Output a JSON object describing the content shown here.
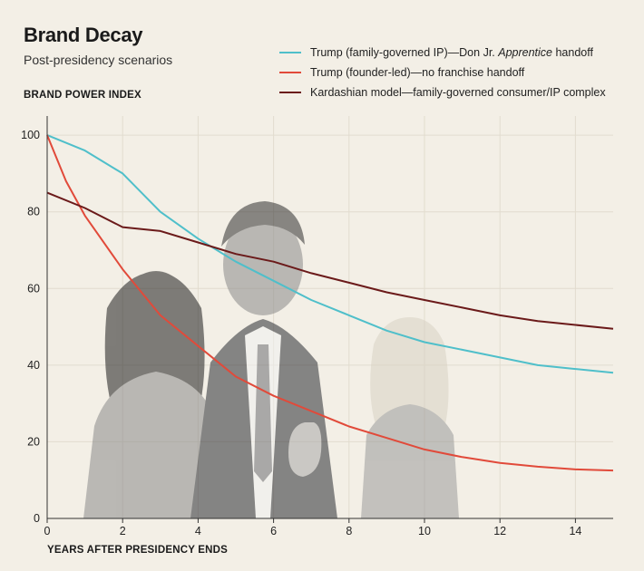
{
  "chart_data": {
    "type": "line",
    "title": "Brand Decay",
    "subtitle": "Post-presidency scenarios",
    "ylabel": "BRAND POWER INDEX",
    "xlabel": "YEARS AFTER PRESIDENCY ENDS",
    "xlim": [
      0,
      15
    ],
    "ylim": [
      0,
      105
    ],
    "x_ticks": [
      0,
      2,
      4,
      6,
      8,
      10,
      12,
      14
    ],
    "y_ticks": [
      0,
      20,
      40,
      60,
      80,
      100
    ],
    "grid": true,
    "legend_position": "top-right",
    "series": [
      {
        "name": "Trump (family-governed IP)—Don Jr. Apprentice handoff",
        "name_prefix": "Trump (family-governed IP)—Don Jr. ",
        "name_italic": "Apprentice",
        "name_suffix": " handoff",
        "color": "#4fbfca",
        "x": [
          0,
          1,
          2,
          3,
          4,
          5,
          6,
          7,
          8,
          9,
          10,
          11,
          12,
          13,
          14,
          15
        ],
        "y": [
          100,
          96,
          90,
          80,
          73,
          67,
          62,
          57,
          53,
          49,
          46,
          44,
          42,
          40,
          39,
          38
        ]
      },
      {
        "name": "Trump (founder-led)—no franchise handoff",
        "color": "#e14a3a",
        "x": [
          0,
          0.5,
          1,
          2,
          3,
          4,
          5,
          6,
          7,
          8,
          9,
          10,
          11,
          12,
          13,
          14,
          15
        ],
        "y": [
          100,
          88,
          79,
          65,
          53,
          45,
          37,
          32,
          28,
          24,
          21,
          18,
          16,
          14.5,
          13.5,
          12.8,
          12.5
        ]
      },
      {
        "name": "Kardashian model—family-governed consumer/IP complex",
        "color": "#6b1a1a",
        "x": [
          0,
          1,
          2,
          3,
          4,
          5,
          6,
          7,
          8,
          9,
          10,
          11,
          12,
          13,
          14,
          15
        ],
        "y": [
          85,
          81,
          76,
          75,
          72,
          69,
          67,
          64,
          61.5,
          59,
          57,
          55,
          53,
          51.5,
          50.5,
          49.5
        ]
      }
    ]
  },
  "colors": {
    "background": "#f3efe6",
    "grid": "#e2dccf",
    "axis": "#333333"
  }
}
